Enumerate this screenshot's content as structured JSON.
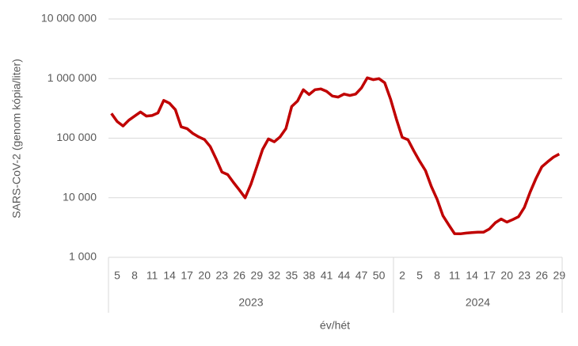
{
  "chart_data": {
    "type": "line",
    "y_label": "SARS-CoV-2 (genom kópia/liter)",
    "x_label": "év/hét",
    "log_y": true,
    "grid": true,
    "ylim": [
      1000,
      10000000
    ],
    "yticks": [
      {
        "value": 1000,
        "label": "1 000"
      },
      {
        "value": 10000,
        "label": "10 000"
      },
      {
        "value": 100000,
        "label": "100 000"
      },
      {
        "value": 1000000,
        "label": "1 000 000"
      },
      {
        "value": 10000000,
        "label": "10 000 000"
      }
    ],
    "groups": [
      {
        "name": "2023",
        "span": 49
      },
      {
        "name": "2024",
        "span": 29
      }
    ],
    "categories": [
      null,
      "5",
      null,
      null,
      "8",
      null,
      null,
      "11",
      null,
      null,
      "14",
      null,
      null,
      "17",
      null,
      null,
      "20",
      null,
      null,
      "23",
      null,
      null,
      "26",
      null,
      null,
      "29",
      null,
      null,
      "32",
      null,
      null,
      "35",
      null,
      null,
      "38",
      null,
      null,
      "41",
      null,
      null,
      "44",
      null,
      null,
      "47",
      null,
      null,
      "50",
      null,
      null,
      null,
      "2",
      null,
      null,
      "5",
      null,
      null,
      "8",
      null,
      null,
      "11",
      null,
      null,
      "14",
      null,
      null,
      "17",
      null,
      null,
      "20",
      null,
      null,
      "23",
      null,
      null,
      "26",
      null,
      null,
      "29"
    ],
    "series": [
      {
        "name": "SARS-CoV-2",
        "color": "#c00000",
        "values": [
          260000,
          190000,
          160000,
          200000,
          235000,
          275000,
          235000,
          240000,
          265000,
          430000,
          385000,
          300000,
          155000,
          145000,
          120000,
          105000,
          95000,
          72000,
          45000,
          27000,
          24500,
          18000,
          13500,
          10000,
          17000,
          33000,
          65000,
          97000,
          87000,
          105000,
          145000,
          340000,
          420000,
          650000,
          540000,
          650000,
          670000,
          610000,
          510000,
          490000,
          550000,
          520000,
          550000,
          700000,
          1030000,
          960000,
          1000000,
          850000,
          450000,
          210000,
          103000,
          94000,
          61000,
          41000,
          28500,
          15500,
          9400,
          5000,
          3500,
          2500,
          2480,
          2550,
          2600,
          2650,
          2650,
          3000,
          3800,
          4400,
          3900,
          4300,
          4800,
          6900,
          12500,
          21000,
          33000,
          40000,
          48000,
          54000
        ]
      }
    ]
  }
}
